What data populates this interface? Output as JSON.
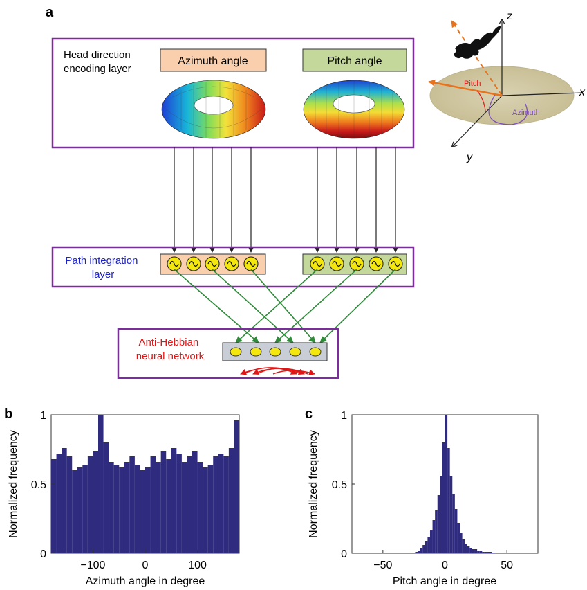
{
  "panel_labels": {
    "a": "a",
    "b": "b",
    "c": "c"
  },
  "colors": {
    "frame": "#7a2e9a",
    "azimuth_fill": "#f9cfad",
    "pitch_fill": "#c4d89c",
    "hist_fill": "#2f2b7e",
    "arrow_green": "#2f8a3a",
    "path_label": "#1d22c8",
    "anti_label": "#e01515",
    "neuron": "#f3e70e",
    "antihebb_box": "#c9ced6",
    "orange_vec": "#e8731f",
    "azimuth_arc": "#7c4dbb"
  },
  "diagram": {
    "hd_layer_label": [
      "Head direction",
      "encoding layer"
    ],
    "azimuth_label": "Azimuth angle",
    "pitch_label": "Pitch angle",
    "path_layer_label": [
      "Path integration",
      "layer"
    ],
    "anti_layer_label": [
      "Anti-Hebbian",
      "neural network"
    ],
    "neurons_per_group": 5,
    "antihebb_neurons": 5
  },
  "axes3d": {
    "x_label": "x",
    "y_label": "y",
    "z_label": "z",
    "pitch_label": "Pitch",
    "azimuth_label": "Azimuth"
  },
  "chart_data": [
    {
      "type": "bar",
      "panel": "b",
      "xlabel": "Azimuth angle in degree",
      "ylabel": "Normalized frequency",
      "xlim": [
        -180,
        180
      ],
      "ylim": [
        0,
        1
      ],
      "xticks": [
        -100,
        0,
        100
      ],
      "xtick_labels": [
        "−100",
        "0",
        "100"
      ],
      "yticks": [
        0,
        0.5,
        1
      ],
      "ytick_labels": [
        "0",
        "0.5",
        "1"
      ],
      "x": [
        -175,
        -165,
        -155,
        -145,
        -135,
        -125,
        -115,
        -105,
        -95,
        -85,
        -75,
        -65,
        -55,
        -45,
        -35,
        -25,
        -15,
        -5,
        5,
        15,
        25,
        35,
        45,
        55,
        65,
        75,
        85,
        95,
        105,
        115,
        125,
        135,
        145,
        155,
        165,
        175
      ],
      "values": [
        0.68,
        0.72,
        0.76,
        0.7,
        0.6,
        0.62,
        0.64,
        0.7,
        0.74,
        1.0,
        0.8,
        0.66,
        0.64,
        0.62,
        0.66,
        0.7,
        0.64,
        0.6,
        0.62,
        0.7,
        0.66,
        0.74,
        0.68,
        0.76,
        0.72,
        0.66,
        0.7,
        0.74,
        0.66,
        0.62,
        0.64,
        0.7,
        0.72,
        0.7,
        0.76,
        0.96
      ]
    },
    {
      "type": "bar",
      "panel": "c",
      "xlabel": "Pitch angle in degree",
      "ylabel": "Normalized frequency",
      "xlim": [
        -75,
        75
      ],
      "ylim": [
        0,
        1
      ],
      "xticks": [
        -50,
        0,
        50
      ],
      "xtick_labels": [
        "−50",
        "0",
        "50"
      ],
      "yticks": [
        0,
        0.5,
        1
      ],
      "ytick_labels": [
        "0",
        "0.5",
        "1"
      ],
      "x": [
        -23,
        -21,
        -19,
        -17,
        -15,
        -13,
        -11,
        -9,
        -7,
        -5,
        -3,
        -1,
        1,
        3,
        5,
        7,
        9,
        11,
        13,
        15,
        17,
        19,
        21,
        23,
        25,
        27,
        29,
        31,
        33,
        35,
        37,
        39
      ],
      "values": [
        0.01,
        0.02,
        0.04,
        0.06,
        0.09,
        0.12,
        0.17,
        0.24,
        0.31,
        0.42,
        0.56,
        0.8,
        1.0,
        0.76,
        0.56,
        0.43,
        0.32,
        0.22,
        0.15,
        0.1,
        0.07,
        0.05,
        0.04,
        0.03,
        0.03,
        0.02,
        0.02,
        0.01,
        0.01,
        0.01,
        0.01,
        0.005
      ]
    }
  ]
}
